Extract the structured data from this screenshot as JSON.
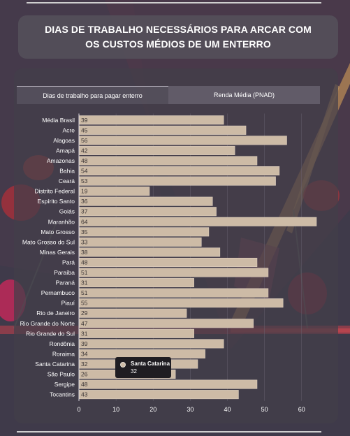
{
  "header": {
    "title": "DIAS DE TRABALHO NECESSÁRIOS PARA ARCAR COM OS CUSTOS MÉDIOS DE UM ENTERRO"
  },
  "tabs": [
    {
      "label": "Dias de trabalho para pagar enterro",
      "active": true
    },
    {
      "label": "Renda Média (PNAD)",
      "active": false
    }
  ],
  "tooltip": {
    "name": "Santa Catarina",
    "value": "32"
  },
  "colors": {
    "bar": "#cdbba6",
    "bar_stroke": "#e6d8c8",
    "background": "#3f3a4a",
    "panel": "#4a4553"
  },
  "chart_data": {
    "type": "bar",
    "orientation": "horizontal",
    "categories": [
      "Média Brasil",
      "Acre",
      "Alagoas",
      "Amapá",
      "Amazonas",
      "Bahia",
      "Ceará",
      "Distrito Federal",
      "Espírito Santo",
      "Goiás",
      "Maranhão",
      "Mato Grosso",
      "Mato Grosso do Sul",
      "Minas Gerais",
      "Pará",
      "Paraíba",
      "Paraná",
      "Pernambuco",
      "Piauí",
      "Rio de Janeiro",
      "Rio Grande do Norte",
      "Rio Grande do Sul",
      "Rondônia",
      "Roraima",
      "Santa Catarina",
      "São Paulo",
      "Sergipe",
      "Tocantins"
    ],
    "values": [
      39,
      45,
      56,
      42,
      48,
      54,
      53,
      19,
      36,
      37,
      64,
      35,
      33,
      38,
      48,
      51,
      31,
      51,
      55,
      29,
      47,
      31,
      39,
      34,
      32,
      26,
      48,
      43
    ],
    "xlim": [
      0,
      64
    ],
    "xticks": [
      0,
      10,
      20,
      30,
      40,
      50,
      60
    ],
    "grid": true,
    "data_labels": true
  }
}
